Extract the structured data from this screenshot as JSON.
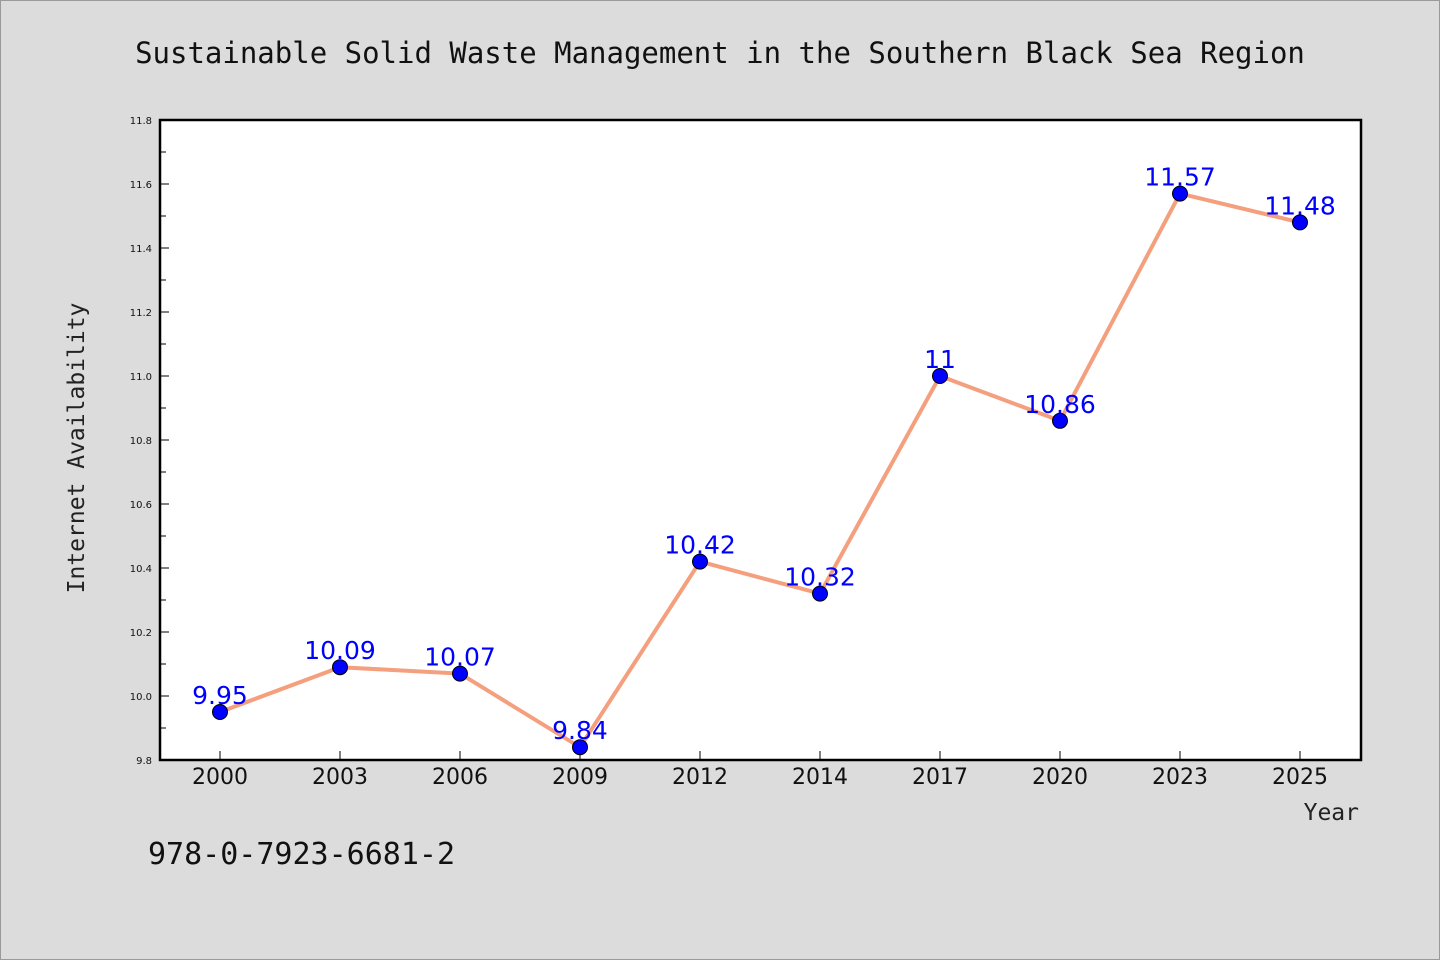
{
  "chart_data": {
    "type": "line",
    "title": "Sustainable Solid Waste Management in the Southern Black Sea Region",
    "xlabel": "Year",
    "ylabel": "Internet Availability",
    "categories": [
      "2000",
      "2003",
      "2006",
      "2009",
      "2012",
      "2014",
      "2017",
      "2020",
      "2023",
      "2025"
    ],
    "series": [
      {
        "values": [
          9.95,
          10.09,
          10.07,
          9.84,
          10.42,
          10.32,
          11.0,
          10.86,
          11.57,
          11.48
        ],
        "labels": [
          "9.95",
          "10.09",
          "10.07",
          "9.84",
          "10.42",
          "10.32",
          "11",
          "10.86",
          "11.57",
          "11.48"
        ],
        "line_color": "#f4a07e",
        "marker_color": "#0000ff"
      }
    ],
    "ylim": [
      9.8,
      11.8
    ],
    "yticks": [
      "9.8",
      "10.0",
      "10.2",
      "10.4",
      "10.6",
      "10.8",
      "11.0",
      "11.2",
      "11.4",
      "11.6",
      "11.8"
    ],
    "grid": false,
    "legend": "none",
    "label_color": "#0000ff",
    "background_color": "#dcdcdc",
    "plot_background": "#ffffff"
  },
  "footnote": "978-0-7923-6681-2"
}
